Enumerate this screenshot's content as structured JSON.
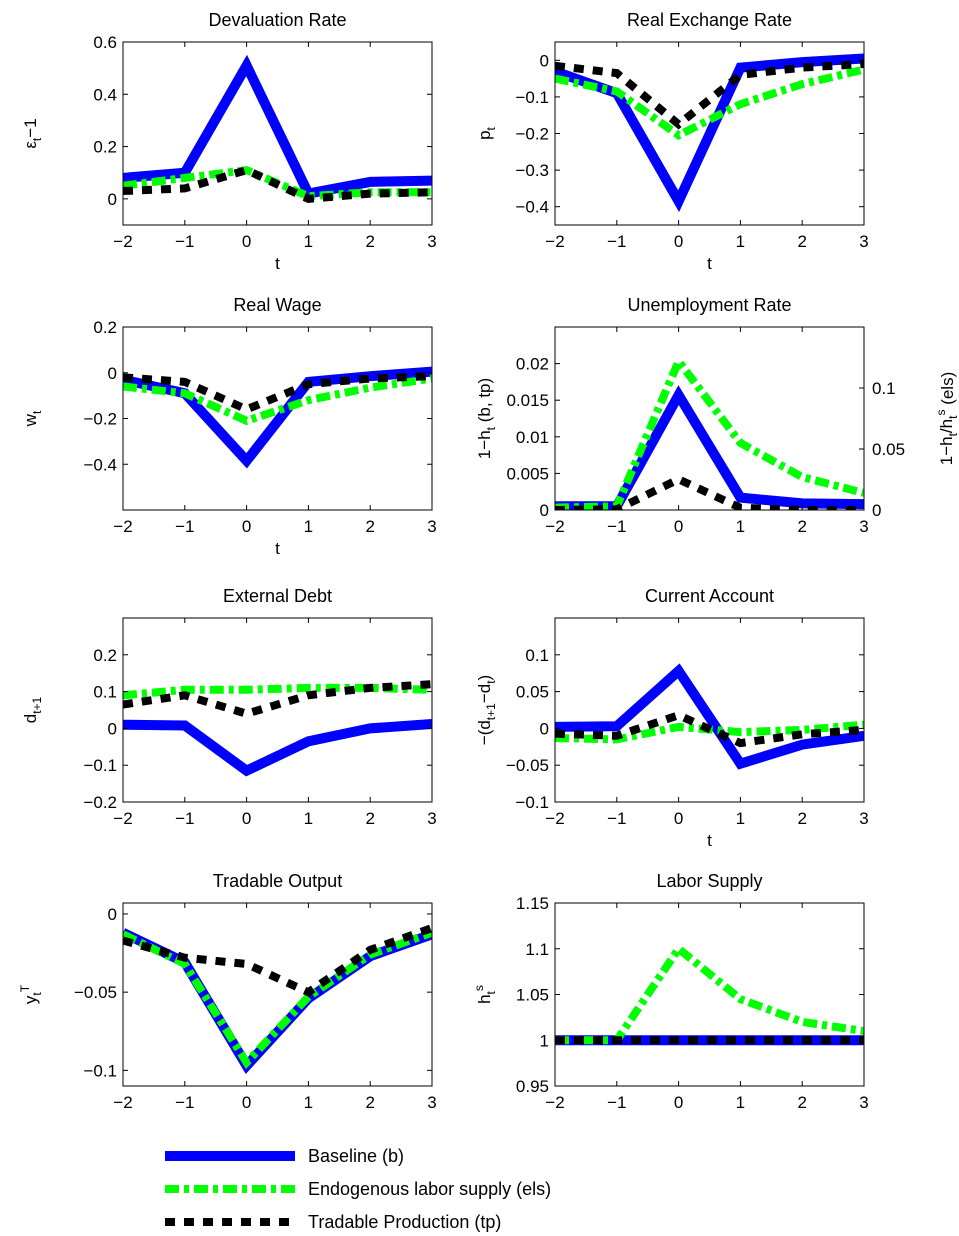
{
  "colors": {
    "baseline": "#0000ff",
    "els": "#00ff00",
    "tp": "#000000",
    "axis": "#000000",
    "background": "#ffffff"
  },
  "legend": {
    "placement": "bottom",
    "entries": [
      "Baseline (b)",
      "Endogenous labor supply (els)",
      "Tradable Production (tp)"
    ]
  },
  "chart_data": [
    {
      "type": "line",
      "title": "Devaluation Rate",
      "xlabel": "t",
      "ylabel": "ε_t−1",
      "xlim": [
        -2,
        3
      ],
      "ylim": [
        -0.1,
        0.6
      ],
      "xticks": [
        -2,
        -1,
        0,
        1,
        2,
        3
      ],
      "xtick_labels": [
        "−2",
        "−1",
        "0",
        "1",
        "2",
        "3"
      ],
      "yticks": [
        0,
        0.2,
        0.4,
        0.6
      ],
      "ytick_labels": [
        "0",
        "0.2",
        "0.4",
        "0.6"
      ],
      "x": [
        -2,
        -1,
        0,
        1,
        2,
        3
      ],
      "series": [
        {
          "name": "Baseline (b)",
          "values": [
            0.08,
            0.1,
            0.51,
            0.02,
            0.065,
            0.07
          ]
        },
        {
          "name": "Endogenous labor supply (els)",
          "values": [
            0.05,
            0.08,
            0.11,
            0.01,
            0.025,
            0.025
          ]
        },
        {
          "name": "Tradable Production (tp)",
          "values": [
            0.03,
            0.04,
            0.11,
            0.0,
            0.02,
            0.025
          ]
        }
      ]
    },
    {
      "type": "line",
      "title": "Real Exchange Rate",
      "xlabel": "t",
      "ylabel": "p_t",
      "xlim": [
        -2,
        3
      ],
      "ylim": [
        -0.45,
        0.05
      ],
      "xticks": [
        -2,
        -1,
        0,
        1,
        2,
        3
      ],
      "xtick_labels": [
        "−2",
        "−1",
        "0",
        "1",
        "2",
        "3"
      ],
      "yticks": [
        -0.4,
        -0.3,
        -0.2,
        -0.1,
        0
      ],
      "ytick_labels": [
        "−0.4",
        "−0.3",
        "−0.2",
        "−0.1",
        "0"
      ],
      "x": [
        -2,
        -1,
        0,
        1,
        2,
        3
      ],
      "series": [
        {
          "name": "Baseline (b)",
          "values": [
            -0.03,
            -0.09,
            -0.385,
            -0.02,
            -0.005,
            0.005
          ]
        },
        {
          "name": "Endogenous labor supply (els)",
          "values": [
            -0.05,
            -0.085,
            -0.205,
            -0.12,
            -0.065,
            -0.025
          ]
        },
        {
          "name": "Tradable Production (tp)",
          "values": [
            -0.015,
            -0.035,
            -0.175,
            -0.04,
            -0.02,
            -0.01
          ]
        }
      ]
    },
    {
      "type": "line",
      "title": "Real Wage",
      "xlabel": "t",
      "ylabel": "w_t",
      "xlim": [
        -2,
        3
      ],
      "ylim": [
        -0.6,
        0.2
      ],
      "xticks": [
        -2,
        -1,
        0,
        1,
        2,
        3
      ],
      "xtick_labels": [
        "−2",
        "−1",
        "0",
        "1",
        "2",
        "3"
      ],
      "yticks": [
        -0.4,
        -0.2,
        0,
        0.2
      ],
      "ytick_labels": [
        "−0.4",
        "−0.2",
        "0",
        "0.2"
      ],
      "x": [
        -2,
        -1,
        0,
        1,
        2,
        3
      ],
      "series": [
        {
          "name": "Baseline (b)",
          "values": [
            -0.03,
            -0.09,
            -0.385,
            -0.04,
            -0.015,
            0.005
          ]
        },
        {
          "name": "Endogenous labor supply (els)",
          "values": [
            -0.06,
            -0.09,
            -0.21,
            -0.12,
            -0.065,
            -0.025
          ]
        },
        {
          "name": "Tradable Production (tp)",
          "values": [
            -0.02,
            -0.04,
            -0.16,
            -0.05,
            -0.025,
            -0.015
          ]
        }
      ]
    },
    {
      "type": "line",
      "title": "Unemployment Rate",
      "xlabel": "",
      "ylabel": "1−h_t (b, tp)",
      "ylabel_right": "1−h_t/h_t^s (els)",
      "xlim": [
        -2,
        3
      ],
      "ylim": [
        0,
        0.025
      ],
      "ylim_right": [
        0,
        0.15
      ],
      "xticks": [
        -2,
        -1,
        0,
        1,
        2,
        3
      ],
      "xtick_labels": [
        "−2",
        "−1",
        "0",
        "1",
        "2",
        "3"
      ],
      "yticks": [
        0,
        0.005,
        0.01,
        0.015,
        0.02
      ],
      "ytick_labels": [
        "0",
        "0.005",
        "0.01",
        "0.015",
        "0.02"
      ],
      "yticks_right": [
        0,
        0.05,
        0.1
      ],
      "ytick_labels_right": [
        "0",
        "0.05",
        "0.1"
      ],
      "x": [
        -2,
        -1,
        0,
        1,
        2,
        3
      ],
      "series": [
        {
          "name": "Baseline (b)",
          "axis": "left",
          "values": [
            0.0005,
            0.0005,
            0.0157,
            0.0017,
            0.0009,
            0.0008
          ]
        },
        {
          "name": "Endogenous labor supply (els)",
          "axis": "right",
          "values": [
            0.002,
            0.003,
            0.122,
            0.055,
            0.027,
            0.014
          ]
        },
        {
          "name": "Tradable Production (tp)",
          "axis": "left",
          "values": [
            0.0,
            0.0001,
            0.0042,
            0.0003,
            0.0,
            0.0
          ]
        }
      ]
    },
    {
      "type": "line",
      "title": "External Debt",
      "xlabel": "",
      "ylabel": "d_t+1",
      "xlim": [
        -2,
        3
      ],
      "ylim": [
        -0.2,
        0.3
      ],
      "xticks": [
        -2,
        -1,
        0,
        1,
        2,
        3
      ],
      "xtick_labels": [
        "−2",
        "−1",
        "0",
        "1",
        "2",
        "3"
      ],
      "yticks": [
        -0.2,
        -0.1,
        0,
        0.1,
        0.2
      ],
      "ytick_labels": [
        "−0.2",
        "−0.1",
        "0",
        "0.1",
        "0.2"
      ],
      "x": [
        -2,
        -1,
        0,
        1,
        2,
        3
      ],
      "series": [
        {
          "name": "Baseline (b)",
          "values": [
            0.01,
            0.008,
            -0.115,
            -0.035,
            0.0,
            0.012
          ]
        },
        {
          "name": "Endogenous labor supply (els)",
          "values": [
            0.09,
            0.105,
            0.105,
            0.11,
            0.11,
            0.105
          ]
        },
        {
          "name": "Tradable Production (tp)",
          "values": [
            0.065,
            0.09,
            0.04,
            0.09,
            0.11,
            0.12
          ]
        }
      ]
    },
    {
      "type": "line",
      "title": "Current Account",
      "xlabel": "t",
      "ylabel": "−(d_t+1−d_t)",
      "xlim": [
        -2,
        3
      ],
      "ylim": [
        -0.1,
        0.15
      ],
      "xticks": [
        -2,
        -1,
        0,
        1,
        2,
        3
      ],
      "xtick_labels": [
        "−2",
        "−1",
        "0",
        "1",
        "2",
        "3"
      ],
      "yticks": [
        -0.1,
        -0.05,
        0,
        0.05,
        0.1
      ],
      "ytick_labels": [
        "−0.1",
        "−0.05",
        "0",
        "0.05",
        "0.1"
      ],
      "x": [
        -2,
        -1,
        0,
        1,
        2,
        3
      ],
      "series": [
        {
          "name": "Baseline (b)",
          "values": [
            0.002,
            0.003,
            0.078,
            -0.048,
            -0.022,
            -0.01
          ]
        },
        {
          "name": "Endogenous labor supply (els)",
          "values": [
            -0.013,
            -0.015,
            0.002,
            -0.005,
            -0.002,
            0.005
          ]
        },
        {
          "name": "Tradable Production (tp)",
          "values": [
            -0.007,
            -0.01,
            0.018,
            -0.02,
            -0.008,
            -0.002
          ]
        }
      ]
    },
    {
      "type": "line",
      "title": "Tradable Output",
      "xlabel": "",
      "ylabel": "y_t^T",
      "xlim": [
        -2,
        3
      ],
      "ylim": [
        -0.11,
        0.007
      ],
      "xticks": [
        -2,
        -1,
        0,
        1,
        2,
        3
      ],
      "xtick_labels": [
        "−2",
        "−1",
        "0",
        "1",
        "2",
        "3"
      ],
      "yticks": [
        -0.1,
        -0.05,
        0
      ],
      "ytick_labels": [
        "−0.1",
        "−0.05",
        "0"
      ],
      "x": [
        -2,
        -1,
        0,
        1,
        2,
        3
      ],
      "series": [
        {
          "name": "Baseline (b)",
          "values": [
            -0.012,
            -0.031,
            -0.097,
            -0.054,
            -0.027,
            -0.013
          ]
        },
        {
          "name": "Endogenous labor supply (els)",
          "values": [
            -0.013,
            -0.032,
            -0.095,
            -0.053,
            -0.026,
            -0.012
          ]
        },
        {
          "name": "Tradable Production (tp)",
          "values": [
            -0.017,
            -0.028,
            -0.032,
            -0.05,
            -0.023,
            -0.009
          ]
        }
      ]
    },
    {
      "type": "line",
      "title": "Labor Supply",
      "xlabel": "",
      "ylabel": "h_t^s",
      "xlim": [
        -2,
        3
      ],
      "ylim": [
        0.95,
        1.15
      ],
      "xticks": [
        -2,
        -1,
        0,
        1,
        2,
        3
      ],
      "xtick_labels": [
        "−2",
        "−1",
        "0",
        "1",
        "2",
        "3"
      ],
      "yticks": [
        0.95,
        1,
        1.05,
        1.1,
        1.15
      ],
      "ytick_labels": [
        "0.95",
        "1",
        "1.05",
        "1.1",
        "1.15"
      ],
      "x": [
        -2,
        -1,
        0,
        1,
        2,
        3
      ],
      "series": [
        {
          "name": "Baseline (b)",
          "values": [
            1.0,
            1.0,
            1.0,
            1.0,
            1.0,
            1.0
          ]
        },
        {
          "name": "Endogenous labor supply (els)",
          "values": [
            1.0,
            1.0,
            1.1,
            1.045,
            1.02,
            1.01
          ]
        },
        {
          "name": "Tradable Production (tp)",
          "values": [
            1.0,
            1.0,
            1.0,
            1.0,
            1.0,
            1.0
          ]
        }
      ]
    }
  ]
}
